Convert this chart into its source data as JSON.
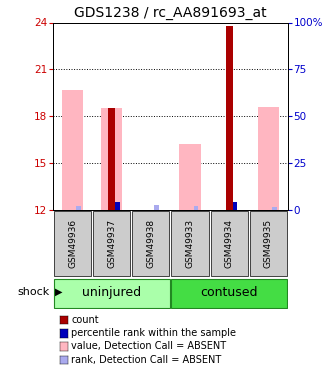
{
  "title": "GDS1238 / rc_AA891693_at",
  "samples": [
    "GSM49936",
    "GSM49937",
    "GSM49938",
    "GSM49933",
    "GSM49934",
    "GSM49935"
  ],
  "ylim_left": [
    12,
    24
  ],
  "ylim_right": [
    0,
    100
  ],
  "yticks_left": [
    12,
    15,
    18,
    21,
    24
  ],
  "yticks_right": [
    0,
    25,
    50,
    75,
    100
  ],
  "ytick_labels_right": [
    "0",
    "25",
    "50",
    "75",
    "100%"
  ],
  "bars": [
    {
      "sample_idx": 0,
      "pink_value": 19.7,
      "blue_rank_value": 12.25,
      "red_value": null,
      "blue_perc_value": null,
      "has_red": false,
      "has_blue": false
    },
    {
      "sample_idx": 1,
      "pink_value": 18.5,
      "blue_rank_value": 12.25,
      "red_value": 18.5,
      "blue_perc_value": 12.5,
      "has_red": true,
      "has_blue": true
    },
    {
      "sample_idx": 2,
      "pink_value": null,
      "blue_rank_value": 12.3,
      "red_value": null,
      "blue_perc_value": null,
      "has_red": false,
      "has_blue": false
    },
    {
      "sample_idx": 3,
      "pink_value": 16.2,
      "blue_rank_value": 12.25,
      "red_value": null,
      "blue_perc_value": null,
      "has_red": false,
      "has_blue": false
    },
    {
      "sample_idx": 4,
      "pink_value": null,
      "blue_rank_value": 12.25,
      "red_value": 23.8,
      "blue_perc_value": 12.5,
      "has_red": true,
      "has_blue": true
    },
    {
      "sample_idx": 5,
      "pink_value": 18.6,
      "blue_rank_value": 12.2,
      "red_value": null,
      "blue_perc_value": null,
      "has_red": false,
      "has_blue": false
    }
  ],
  "pink_bar_width": 0.55,
  "red_bar_width": 0.18,
  "blue_bar_width": 0.12,
  "light_pink": "#FFB6C1",
  "red_color": "#AA0000",
  "blue_color": "#0000BB",
  "light_blue": "#AAAAEE",
  "left_tick_color": "#CC0000",
  "right_tick_color": "#0000CC",
  "title_fontsize": 10,
  "sample_fontsize": 6.5,
  "group_fontsize": 9,
  "legend_fontsize": 7,
  "uninjured_color": "#AAFFAA",
  "contused_color": "#44DD44",
  "group_border_color": "#228822"
}
